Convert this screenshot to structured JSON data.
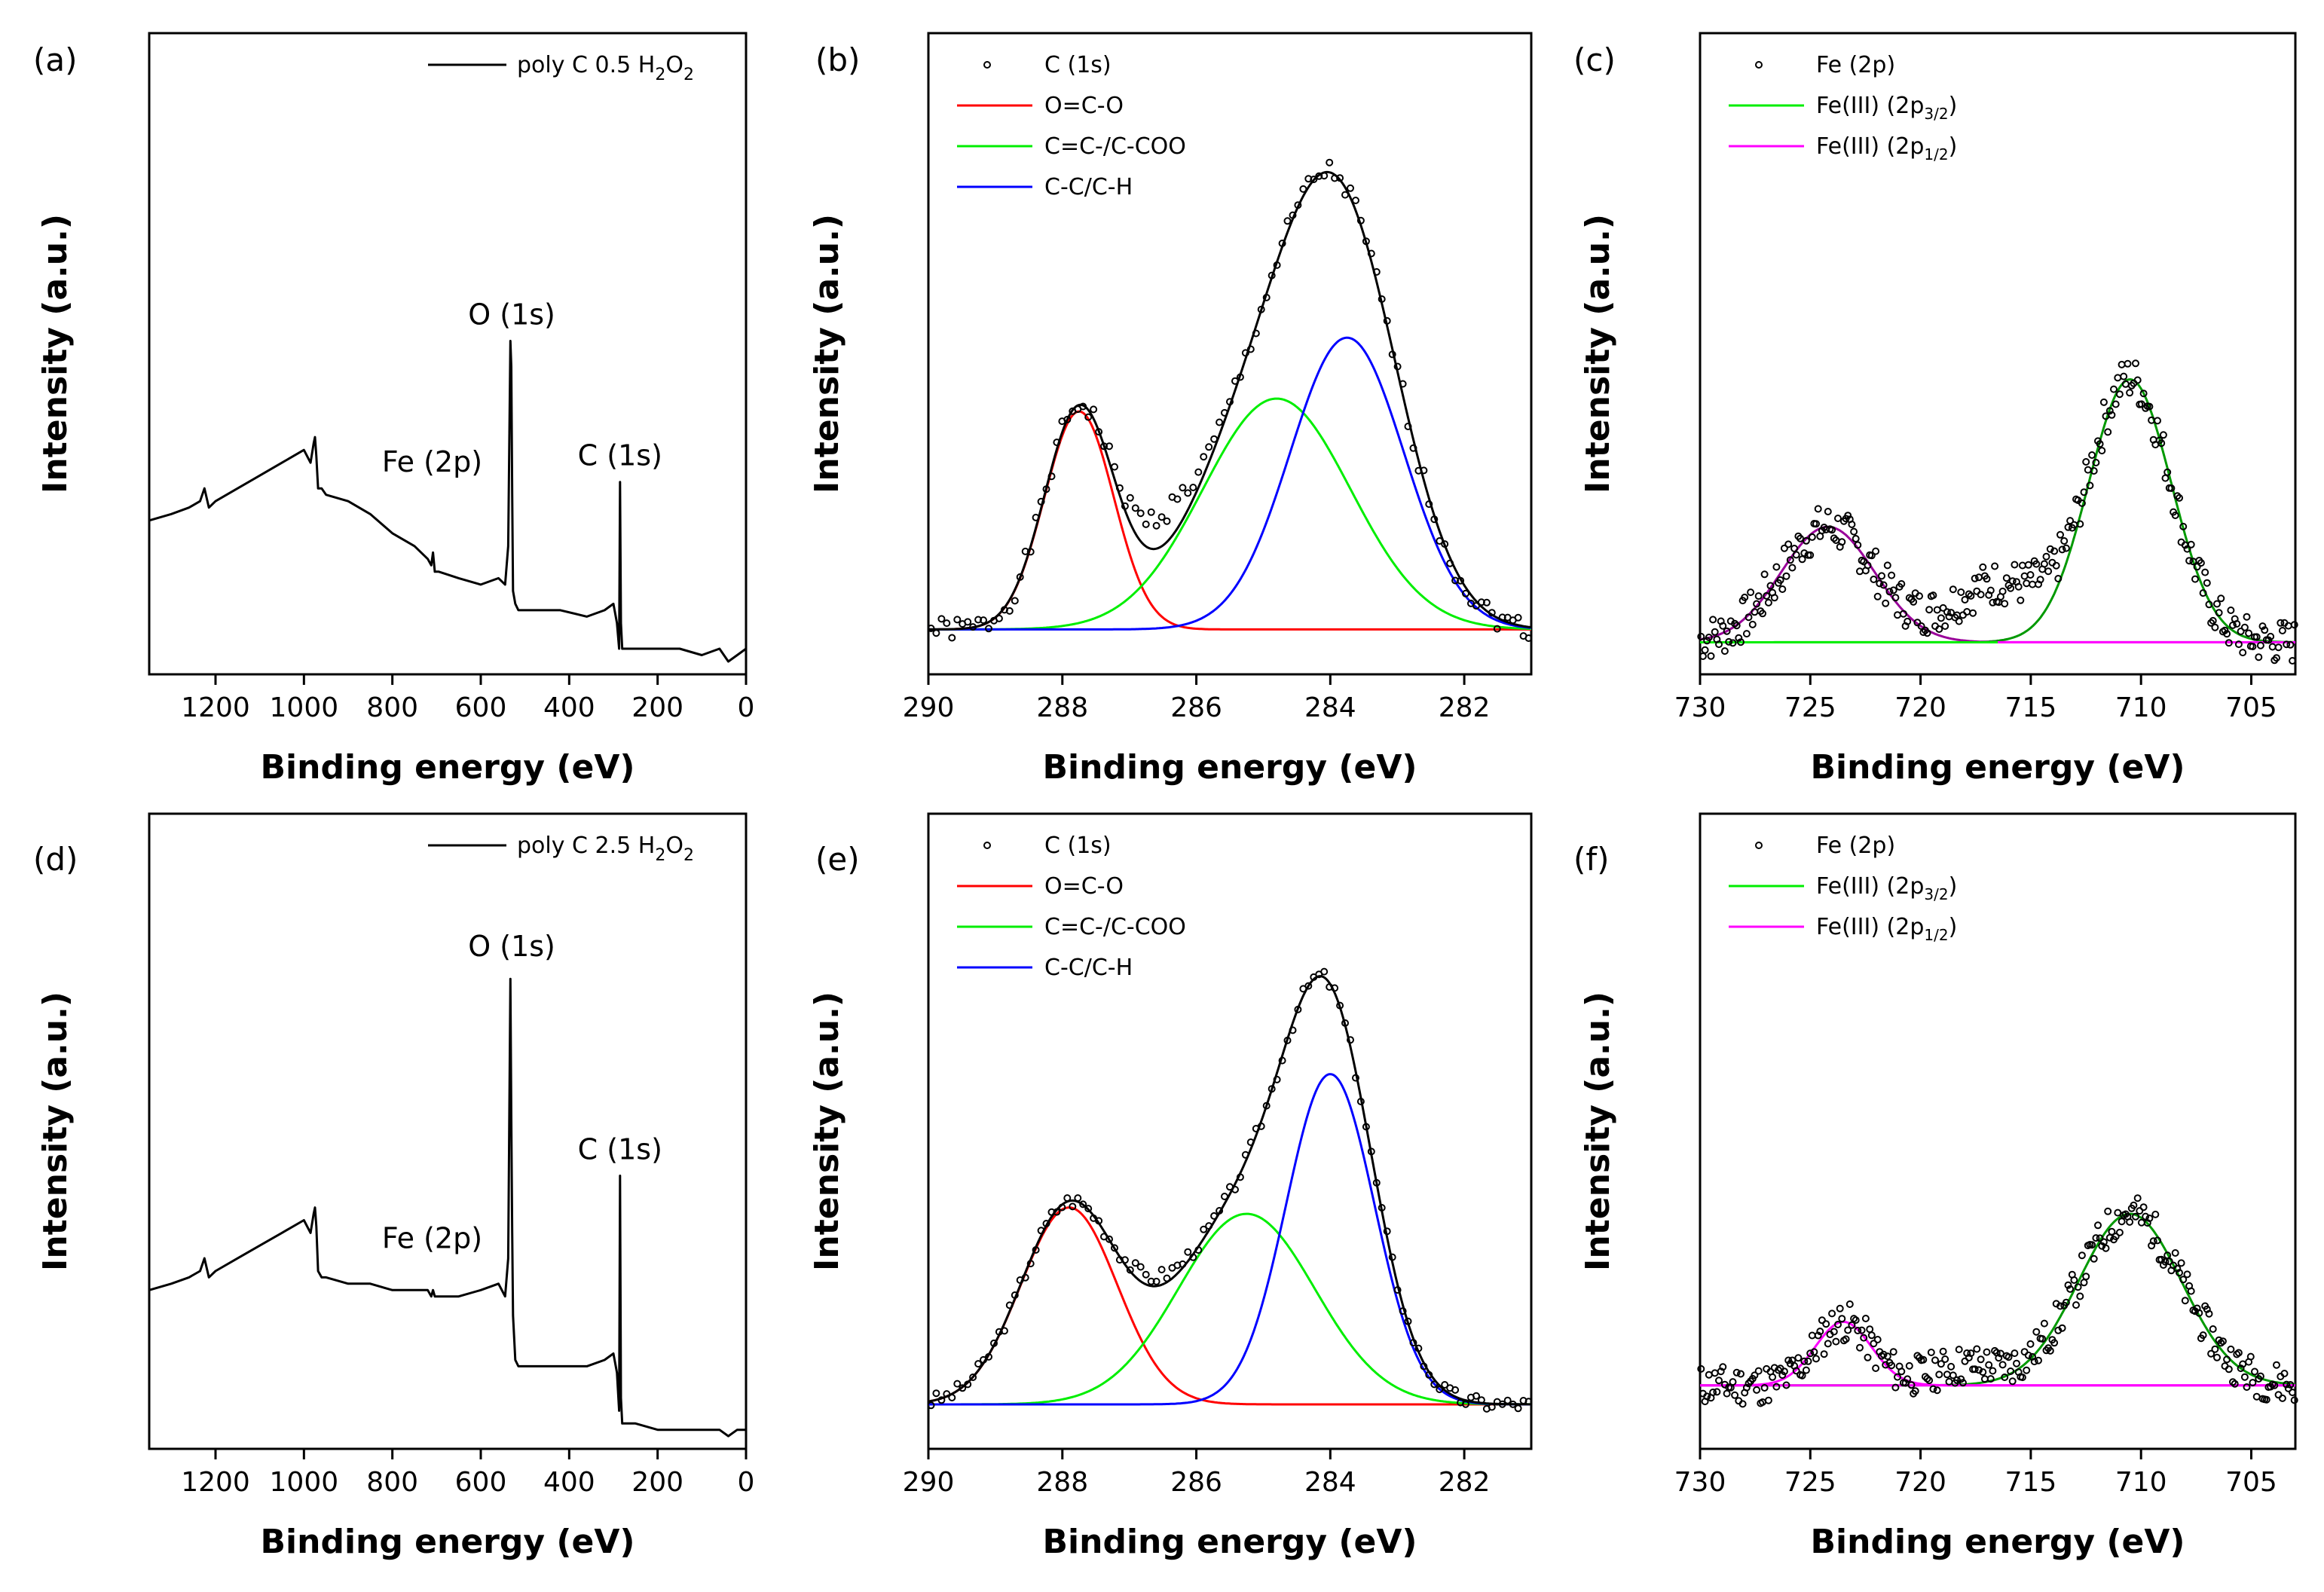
{
  "chart_data": [
    {
      "id": "a",
      "type": "line",
      "panel_label": "(a)",
      "xlabel": "Binding energy (eV)",
      "ylabel": "Intensity (a.u.)",
      "xlim": [
        1350,
        0
      ],
      "ylim": [
        0,
        100
      ],
      "reversed_x": true,
      "xticks": [
        1200,
        1000,
        800,
        600,
        400,
        200,
        0
      ],
      "legend": [
        {
          "name": "poly C 0.5 H2O2",
          "label_text": "poly C 0.5 H",
          "sub1": "2",
          "mid": "O",
          "sub2": "2",
          "color": "#000000",
          "style": "line"
        }
      ],
      "legend_position": "top-right",
      "annotations": [
        {
          "text": "O (1s)",
          "x": 530,
          "y": 52
        },
        {
          "text": "Fe (2p)",
          "x": 710,
          "y": 29
        },
        {
          "text": "C (1s)",
          "x": 285,
          "y": 30
        }
      ],
      "series": [
        {
          "name": "poly C 0.5 H2O2",
          "color": "#000000",
          "x": [
            1350,
            1300,
            1260,
            1235,
            1225,
            1215,
            1200,
            1150,
            1100,
            1050,
            1000,
            985,
            978,
            975,
            972,
            968,
            960,
            950,
            900,
            850,
            800,
            750,
            720,
            712,
            708,
            704,
            695,
            650,
            600,
            560,
            545,
            538,
            533,
            531,
            529,
            527,
            522,
            515,
            480,
            420,
            360,
            320,
            300,
            292,
            287,
            285,
            283,
            280,
            270,
            250,
            200,
            150,
            100,
            60,
            40,
            20,
            0
          ],
          "y": [
            24,
            25,
            26,
            27,
            29,
            26,
            27,
            29,
            31,
            33,
            35,
            33,
            36,
            37,
            34,
            29,
            29,
            28,
            27,
            25,
            22,
            20,
            18,
            17,
            19,
            16,
            16,
            15,
            14,
            15,
            14,
            20,
            52,
            48,
            28,
            13,
            11,
            10,
            10,
            10,
            9,
            10,
            11,
            8,
            4,
            30,
            8,
            4,
            4,
            4,
            4,
            4,
            3,
            4,
            2,
            3,
            4
          ]
        }
      ]
    },
    {
      "id": "b",
      "type": "scatter",
      "panel_label": "(b)",
      "xlabel": "Binding energy (eV)",
      "ylabel": "Intensity (a.u.)",
      "xlim": [
        290,
        281
      ],
      "ylim": [
        0,
        100
      ],
      "reversed_x": true,
      "xticks": [
        290,
        288,
        286,
        284,
        282
      ],
      "legend": [
        {
          "name": "C (1s)",
          "color": "#000000",
          "style": "marker"
        },
        {
          "name": "O=C-O",
          "color": "#ff0000",
          "style": "line"
        },
        {
          "name": "C=C-/C-COO",
          "color": "#00ee00",
          "style": "line"
        },
        {
          "name": "C-C/C-H",
          "color": "#0000ff",
          "style": "line"
        }
      ],
      "legend_position": "top-left",
      "baseline": 7,
      "components": [
        {
          "name": "O=C-O",
          "color": "#ff0000",
          "center": 287.75,
          "height": 34,
          "fwhm": 1.22
        },
        {
          "name": "C=C-/C-COO",
          "color": "#00ee00",
          "center": 284.8,
          "height": 36,
          "fwhm": 2.6
        },
        {
          "name": "C-C/C-H",
          "color": "#0000ff",
          "center": 283.75,
          "height": 45.5,
          "fwhm": 2.0
        }
      ],
      "envelope": {
        "name": "Fit",
        "color": "#000000"
      },
      "points": {
        "name": "C (1s)",
        "color": "#000000",
        "count": 115,
        "noise_amp": 1.8,
        "seed": 1,
        "shoulder": {
          "center": 286.5,
          "height": 5,
          "fwhm": 1.0
        }
      }
    },
    {
      "id": "c",
      "type": "scatter",
      "panel_label": "(c)",
      "xlabel": "Binding energy (eV)",
      "ylabel": "Intensity (a.u.)",
      "xlim": [
        730,
        703
      ],
      "ylim": [
        0,
        100
      ],
      "reversed_x": true,
      "xticks": [
        730,
        725,
        720,
        715,
        710,
        705
      ],
      "legend": [
        {
          "name": "Fe (2p)",
          "color": "#000000",
          "style": "marker"
        },
        {
          "name": "Fe(III) (2p3/2)",
          "label_text": "Fe(III) (2p",
          "sub": "3/2",
          "tail": ")",
          "color": "#00ee00",
          "style": "line"
        },
        {
          "name": "Fe(III) (2p1/2)",
          "label_text": "Fe(III) (2p",
          "sub": "1/2",
          "tail": ")",
          "color": "#ff00ff",
          "style": "line"
        }
      ],
      "legend_position": "top-left",
      "baseline": 5,
      "components": [
        {
          "name": "Fe(III) (2p3/2)",
          "color": "#009900",
          "center": 710.5,
          "height": 41,
          "fwhm": 4.4
        },
        {
          "name": "Fe(III) (2p1/2)",
          "color": "#990099",
          "center": 724.2,
          "height": 18,
          "fwhm": 5.0
        }
      ],
      "baseline_line": {
        "left_color": "#00ee00",
        "right_color": "#ff00ff"
      },
      "points": {
        "name": "Fe (2p)",
        "color": "#000000",
        "count": 300,
        "noise_amp": 3.5,
        "seed": 7,
        "shoulder": {
          "center": 716.5,
          "height": 9,
          "fwhm": 5.0
        }
      }
    },
    {
      "id": "d",
      "type": "line",
      "panel_label": "(d)",
      "xlabel": "Binding energy (eV)",
      "ylabel": "Intensity (a.u.)",
      "xlim": [
        1350,
        0
      ],
      "ylim": [
        0,
        100
      ],
      "reversed_x": true,
      "xticks": [
        1200,
        1000,
        800,
        600,
        400,
        200,
        0
      ],
      "legend": [
        {
          "name": "poly C 2.5 H2O2",
          "label_text": "poly C 2.5 H",
          "sub1": "2",
          "mid": "O",
          "sub2": "2",
          "color": "#000000",
          "style": "line"
        }
      ],
      "legend_position": "top-right",
      "annotations": [
        {
          "text": "O (1s)",
          "x": 530,
          "y": 75
        },
        {
          "text": "Fe (2p)",
          "x": 710,
          "y": 29
        },
        {
          "text": "C (1s)",
          "x": 285,
          "y": 43
        }
      ],
      "series": [
        {
          "name": "poly C 2.5 H2O2",
          "color": "#000000",
          "x": [
            1350,
            1300,
            1260,
            1235,
            1225,
            1215,
            1200,
            1150,
            1100,
            1050,
            1000,
            985,
            978,
            975,
            972,
            968,
            960,
            950,
            900,
            850,
            800,
            750,
            720,
            712,
            708,
            704,
            695,
            650,
            600,
            560,
            545,
            538,
            533,
            531,
            529,
            527,
            522,
            515,
            480,
            420,
            360,
            320,
            300,
            292,
            287,
            285,
            283,
            280,
            270,
            250,
            200,
            150,
            100,
            60,
            40,
            20,
            0
          ],
          "y": [
            25,
            26,
            27,
            28,
            30,
            27,
            28,
            30,
            32,
            34,
            36,
            34,
            37,
            38,
            35,
            28,
            27,
            27,
            26,
            26,
            25,
            25,
            25,
            24,
            25,
            24,
            24,
            24,
            25,
            26,
            24,
            30,
            74,
            52,
            34,
            21,
            14,
            13,
            13,
            13,
            13,
            14,
            15,
            12,
            6,
            43,
            8,
            4,
            4,
            4,
            3,
            3,
            3,
            3,
            2,
            3,
            3
          ]
        }
      ]
    },
    {
      "id": "e",
      "type": "scatter",
      "panel_label": "(e)",
      "xlabel": "Binding energy (eV)",
      "ylabel": "Intensity (a.u.)",
      "xlim": [
        290,
        281
      ],
      "ylim": [
        0,
        100
      ],
      "reversed_x": true,
      "xticks": [
        290,
        288,
        286,
        284,
        282
      ],
      "legend": [
        {
          "name": "C (1s)",
          "color": "#000000",
          "style": "marker"
        },
        {
          "name": "O=C-O",
          "color": "#ff0000",
          "style": "line"
        },
        {
          "name": "C=C-/C-COO",
          "color": "#00ee00",
          "style": "line"
        },
        {
          "name": "C-C/C-H",
          "color": "#0000ff",
          "style": "line"
        }
      ],
      "legend_position": "top-left",
      "baseline": 7,
      "components": [
        {
          "name": "O=C-O",
          "color": "#ff0000",
          "center": 287.9,
          "height": 31,
          "fwhm": 1.7
        },
        {
          "name": "C=C-/C-COO",
          "color": "#00ee00",
          "center": 285.25,
          "height": 30,
          "fwhm": 2.4
        },
        {
          "name": "C-C/C-H",
          "color": "#0000ff",
          "center": 284.0,
          "height": 52,
          "fwhm": 1.55
        }
      ],
      "envelope": {
        "name": "Fit",
        "color": "#000000"
      },
      "points": {
        "name": "C (1s)",
        "color": "#000000",
        "count": 115,
        "noise_amp": 1.2,
        "seed": 3,
        "shoulder": {
          "center": 286.6,
          "height": 1.5,
          "fwhm": 1.0
        }
      }
    },
    {
      "id": "f",
      "type": "scatter",
      "panel_label": "(f)",
      "xlabel": "Binding energy (eV)",
      "ylabel": "Intensity (a.u.)",
      "xlim": [
        730,
        703
      ],
      "ylim": [
        0,
        100
      ],
      "reversed_x": true,
      "xticks": [
        730,
        725,
        720,
        715,
        710,
        705
      ],
      "legend": [
        {
          "name": "Fe (2p)",
          "color": "#000000",
          "style": "marker"
        },
        {
          "name": "Fe(III) (2p3/2)",
          "label_text": "Fe(III) (2p",
          "sub": "3/2",
          "tail": ")",
          "color": "#00ee00",
          "style": "line"
        },
        {
          "name": "Fe(III) (2p1/2)",
          "label_text": "Fe(III) (2p",
          "sub": "1/2",
          "tail": ")",
          "color": "#ff00ff",
          "style": "line"
        }
      ],
      "legend_position": "top-left",
      "baseline": 10,
      "components": [
        {
          "name": "Fe(III) (2p3/2)",
          "color": "#009900",
          "center": 710.5,
          "height": 27,
          "fwhm": 5.5
        },
        {
          "name": "Fe(III) (2p1/2)",
          "color": "#ff00ff",
          "center": 723.5,
          "height": 10,
          "fwhm": 3.0
        }
      ],
      "baseline_line": {
        "left_color": "#ff00ff",
        "right_color": "#ff00ff"
      },
      "points": {
        "name": "Fe (2p)",
        "color": "#000000",
        "count": 300,
        "noise_amp": 3.2,
        "seed": 11,
        "shoulder": {
          "center": 718,
          "height": 3,
          "fwhm": 4.0
        }
      }
    }
  ]
}
